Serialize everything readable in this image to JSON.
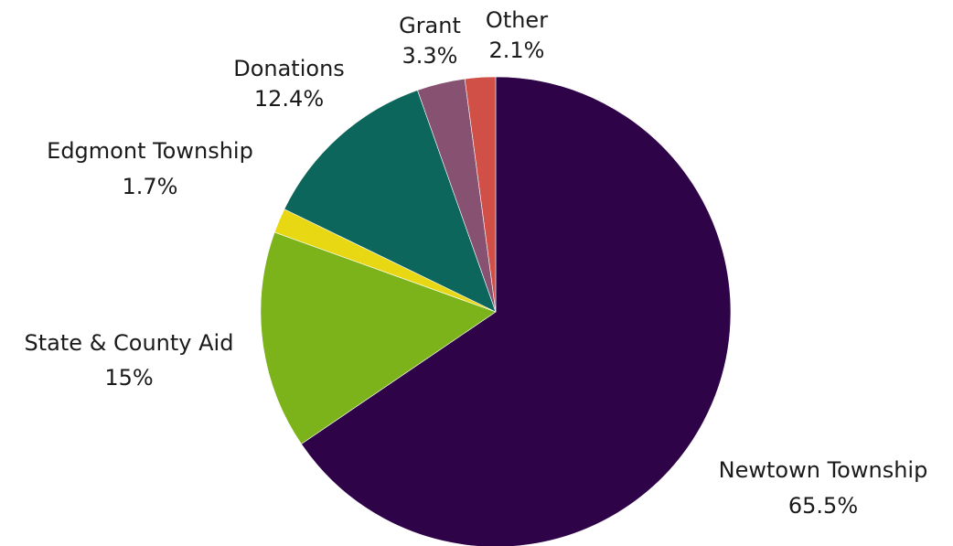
{
  "chart_data": {
    "type": "pie",
    "title": "",
    "start": "top",
    "direction": "clockwise",
    "slices": [
      {
        "label": "Newtown Township",
        "value": 65.5,
        "value_label": "65.5%",
        "color": "#2e0348"
      },
      {
        "label": "State & County Aid",
        "value": 15,
        "value_label": "15%",
        "color": "#7cb21a"
      },
      {
        "label": "Edgmont Township",
        "value": 1.7,
        "value_label": "1.7%",
        "color": "#e8d813"
      },
      {
        "label": "Donations",
        "value": 12.4,
        "value_label": "12.4%",
        "color": "#0c665b"
      },
      {
        "label": "Grant",
        "value": 3.3,
        "value_label": "3.3%",
        "color": "#875171"
      },
      {
        "label": "Other",
        "value": 2.1,
        "value_label": "2.1%",
        "color": "#d04f46"
      }
    ]
  }
}
